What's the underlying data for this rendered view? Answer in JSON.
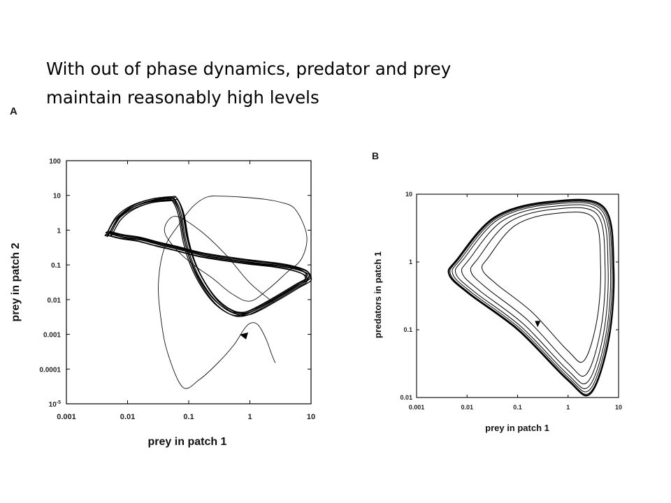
{
  "slide": {
    "title_line1": "With out of phase dynamics, predator and prey",
    "title_line2": "maintain reasonably high levels"
  },
  "chart_data": [
    {
      "panel": "A",
      "type": "line",
      "xscale": "log",
      "yscale": "log",
      "xlabel": "prey in patch 1",
      "ylabel": "prey in patch 2",
      "xlim": [
        0.001,
        10
      ],
      "ylim": [
        1e-05,
        100
      ],
      "xticks": [
        "0.001",
        "0.01",
        "0.1",
        "1",
        "10"
      ],
      "yticks": [
        "10^-5",
        "0.0001",
        "0.001",
        "0.01",
        "0.1",
        "1",
        "10",
        "100"
      ],
      "series": [
        {
          "values_description": "transient trajectory approaching an out-of-phase limit cycle",
          "x": [
            2.6,
            2.3,
            1.8,
            1.3,
            0.9,
            0.55,
            0.3,
            0.15,
            0.08,
            0.045,
            0.035,
            0.032,
            0.04,
            0.07,
            0.12,
            0.2,
            0.35,
            0.7,
            1.5,
            3,
            5.5,
            8.5,
            7,
            4,
            2,
            1,
            0.5,
            0.25,
            0.12,
            0.06,
            0.04,
            0.06,
            0.15,
            0.4,
            1,
            2.5
          ],
          "y": [
            0.00015,
            0.00025,
            0.0008,
            0.002,
            0.0018,
            0.0005,
            0.00015,
            5e-05,
            3e-05,
            0.0003,
            0.003,
            0.03,
            0.3,
            1.5,
            5,
            9,
            9.5,
            9,
            8,
            6.5,
            4,
            0.7,
            0.15,
            0.06,
            0.02,
            0.009,
            0.015,
            0.04,
            0.1,
            0.3,
            1,
            2.5,
            1,
            0.2,
            0.03,
            0.008
          ]
        },
        {
          "values_description": "limit cycle (figure-eight, several near-coincident loops)",
          "x": [
            0.005,
            0.007,
            0.012,
            0.025,
            0.05,
            0.06,
            0.075,
            0.09,
            0.12,
            0.18,
            0.3,
            0.55,
            0.9,
            1.5,
            3,
            6,
            8.5,
            9,
            8,
            5,
            2.5,
            1,
            0.4,
            0.15,
            0.06,
            0.03,
            0.015,
            0.008,
            0.005
          ],
          "y": [
            0.8,
            2.2,
            4.5,
            7,
            8,
            7.5,
            3,
            0.5,
            0.1,
            0.025,
            0.008,
            0.004,
            0.004,
            0.006,
            0.012,
            0.025,
            0.035,
            0.045,
            0.06,
            0.08,
            0.1,
            0.12,
            0.15,
            0.2,
            0.3,
            0.4,
            0.55,
            0.65,
            0.8
          ]
        }
      ],
      "annotation": "arrow on transient trajectory near (0.8, 0.0009)"
    },
    {
      "panel": "B",
      "type": "line",
      "xscale": "log",
      "yscale": "log",
      "xlabel": "prey in patch 1",
      "ylabel": "predators in patch 1",
      "xlim": [
        0.001,
        10
      ],
      "ylim": [
        0.01,
        10
      ],
      "xticks": [
        "0.001",
        "0.01",
        "0.1",
        "1",
        "10"
      ],
      "yticks": [
        "0.01",
        "0.1",
        "1",
        "10"
      ],
      "series": [
        {
          "values_description": "trajectory spiralling outward from inner loop to outer limit cycle",
          "rings": [
            {
              "xmin": 0.02,
              "xmax": 4.4,
              "ymin": 0.035,
              "ymax": 5.2
            },
            {
              "xmin": 0.012,
              "xmax": 5.4,
              "ymin": 0.022,
              "ymax": 6.0
            },
            {
              "xmin": 0.008,
              "xmax": 6.2,
              "ymin": 0.017,
              "ymax": 6.6
            },
            {
              "xmin": 0.006,
              "xmax": 6.9,
              "ymin": 0.0145,
              "ymax": 7.1
            },
            {
              "xmin": 0.0052,
              "xmax": 7.4,
              "ymin": 0.013,
              "ymax": 7.4
            },
            {
              "xmin": 0.0047,
              "xmax": 7.8,
              "ymin": 0.012,
              "ymax": 7.6
            },
            {
              "xmin": 0.0044,
              "xmax": 8.0,
              "ymin": 0.0115,
              "ymax": 7.8
            }
          ]
        }
      ],
      "annotation": "arrow on inner trajectory near (0.25, 0.12)"
    }
  ]
}
